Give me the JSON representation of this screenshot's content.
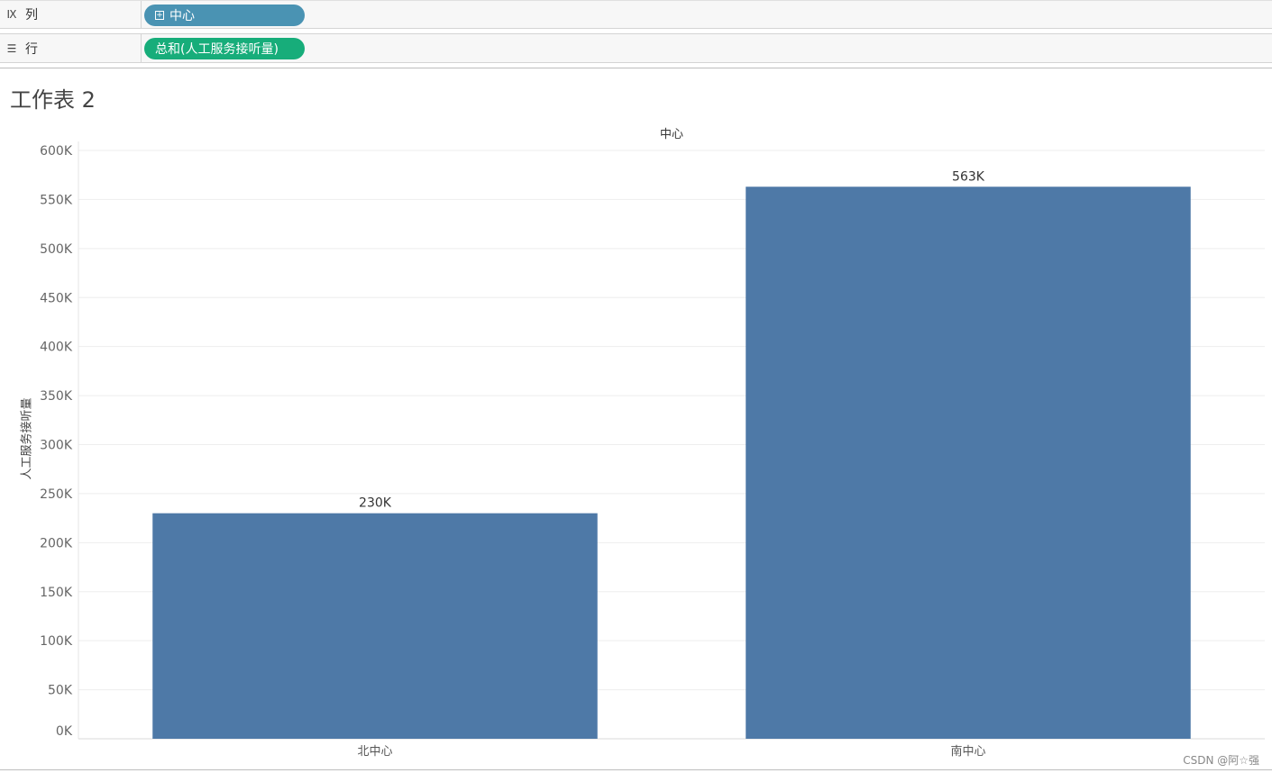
{
  "shelves": {
    "columns": {
      "icon": "columns-icon",
      "label": "列",
      "pill": "中心"
    },
    "rows": {
      "icon": "rows-icon",
      "label": "行",
      "pill": "总和(人工服务接听量)"
    }
  },
  "sheet": {
    "title": "工作表 2"
  },
  "colors": {
    "bar": "#4e79a7",
    "dimension_pill": "#4a93b3",
    "measure_pill": "#17ad7a"
  },
  "chart_data": {
    "type": "bar",
    "title": "中心",
    "ylabel": "人工服务接听量",
    "xlabel": "",
    "categories": [
      "北中心",
      "南中心"
    ],
    "values": [
      230000,
      563000
    ],
    "data_labels": [
      "230K",
      "563K"
    ],
    "ylim": [
      0,
      600000
    ],
    "yticks": [
      0,
      50000,
      100000,
      150000,
      200000,
      250000,
      300000,
      350000,
      400000,
      450000,
      500000,
      550000,
      600000
    ],
    "ytick_labels": [
      "0K",
      "50K",
      "100K",
      "150K",
      "200K",
      "250K",
      "300K",
      "350K",
      "400K",
      "450K",
      "500K",
      "550K",
      "600K"
    ],
    "grid": true
  },
  "watermark": "CSDN @阿☆强"
}
